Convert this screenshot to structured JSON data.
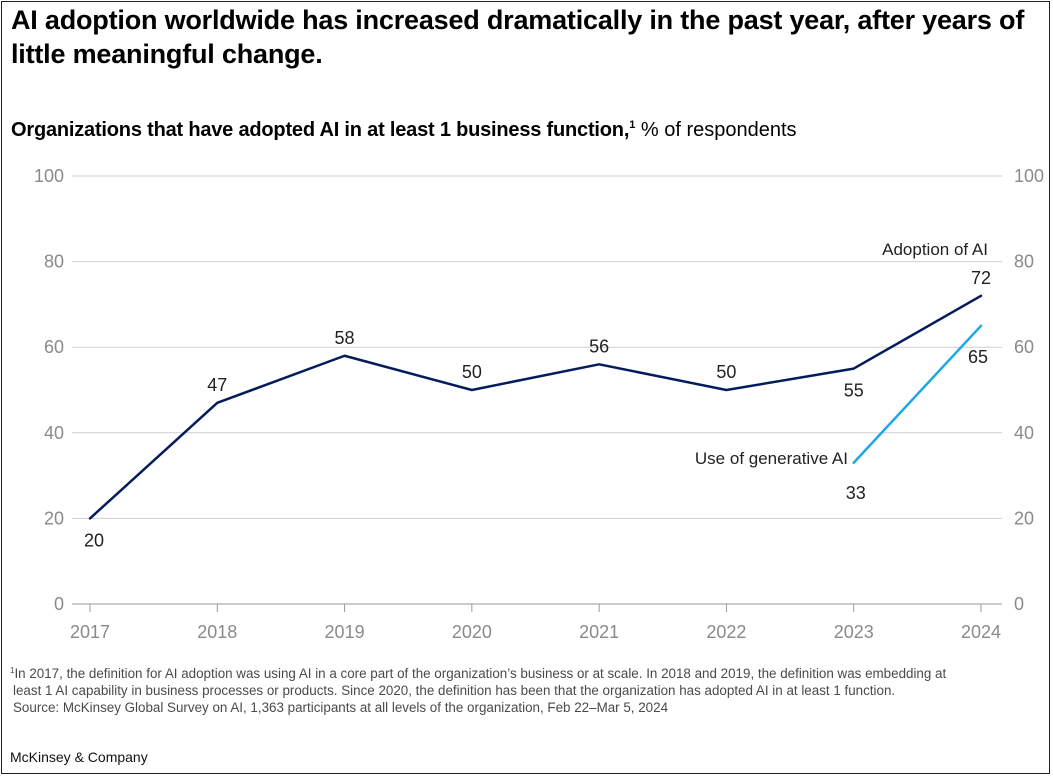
{
  "headline": "AI adoption worldwide has increased dramatically in the past year, after years of little meaningful change.",
  "subtitle": {
    "bold": "Organizations that have adopted AI in at least 1 business function,",
    "sup": "1",
    "rest": " % of respondents"
  },
  "chart_data": {
    "type": "line",
    "x": [
      "2017",
      "2018",
      "2019",
      "2020",
      "2021",
      "2022",
      "2023",
      "2024"
    ],
    "ylim": [
      0,
      100
    ],
    "yticks": [
      0,
      20,
      40,
      60,
      80,
      100
    ],
    "grid": true,
    "series": [
      {
        "name": "Adoption of AI",
        "color": "#051c5c",
        "x": [
          "2017",
          "2018",
          "2019",
          "2020",
          "2021",
          "2022",
          "2023",
          "2024"
        ],
        "values": [
          20,
          47,
          58,
          50,
          56,
          50,
          55,
          72
        ]
      },
      {
        "name": "Use of generative AI",
        "color": "#1ca8e6",
        "x": [
          "2023",
          "2024"
        ],
        "values": [
          33,
          65
        ]
      }
    ]
  },
  "footnote": {
    "sup": "1",
    "line1": "In 2017, the definition for AI adoption was using AI in a core part of the organization’s business or at scale. In 2018 and 2019, the definition was embedding at",
    "line2": "least 1 AI capability in business processes or products. Since 2020, the definition has been that the organization has adopted AI in at least 1 function.",
    "line3": "Source: McKinsey Global Survey on AI, 1,363 participants at all levels of the organization, Feb 22–Mar 5, 2024"
  },
  "brand": "McKinsey & Company"
}
